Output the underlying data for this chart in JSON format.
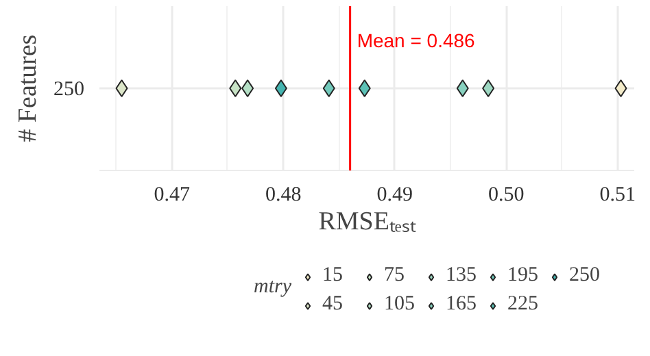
{
  "chart_data": {
    "type": "scatter",
    "orientation": "horizontal",
    "xlabel": "RMSEₜₑₛₜ",
    "ylabel": "# Features",
    "legend_title": "mtry",
    "categories": [
      "250"
    ],
    "series": [
      {
        "name": "15",
        "color": "#f3ebc9",
        "values": [
          0.5103
        ]
      },
      {
        "name": "45",
        "color": "#dce6c9",
        "values": [
          0.4655
        ]
      },
      {
        "name": "75",
        "color": "#c8e3c6",
        "values": [
          0.4757
        ]
      },
      {
        "name": "105",
        "color": "#b4dfc5",
        "values": [
          0.4768
        ]
      },
      {
        "name": "135",
        "color": "#9ed8c2",
        "values": [
          0.4984
        ]
      },
      {
        "name": "165",
        "color": "#88d1bf",
        "values": [
          0.4961
        ]
      },
      {
        "name": "195",
        "color": "#72c9bb",
        "values": [
          0.4841
        ]
      },
      {
        "name": "225",
        "color": "#5cc1b6",
        "values": [
          0.4873
        ]
      },
      {
        "name": "250",
        "color": "#45b4b0",
        "values": [
          0.4798
        ]
      }
    ],
    "xlim": [
      0.4635,
      0.5115
    ],
    "xticks": [
      {
        "value": 0.47,
        "label": "0.47"
      },
      {
        "value": 0.48,
        "label": "0.48"
      },
      {
        "value": 0.49,
        "label": "0.49"
      },
      {
        "value": 0.5,
        "label": "0.50"
      },
      {
        "value": 0.51,
        "label": "0.51"
      }
    ],
    "grid": true,
    "marker": "diamond",
    "legend": "bottom",
    "ref_lines": [
      {
        "axis": "x",
        "value": 0.486,
        "label": "Mean = 0.486",
        "color": "#ff0000"
      }
    ]
  }
}
